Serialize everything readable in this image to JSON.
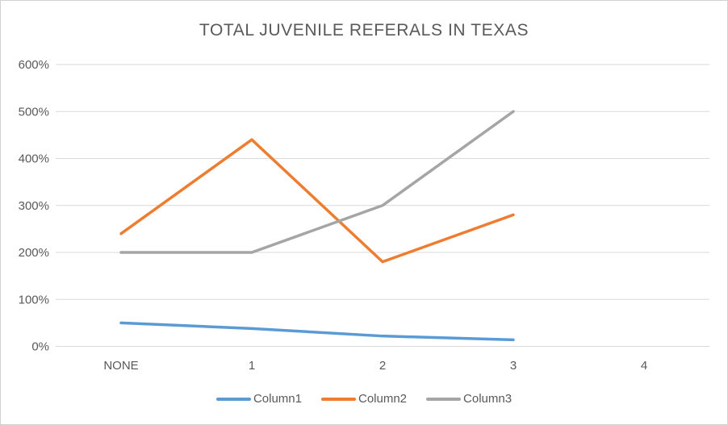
{
  "chart_data": {
    "type": "line",
    "title": "TOTAL JUVENILE REFERALS IN TEXAS",
    "categories": [
      "NONE",
      "1",
      "2",
      "3",
      "4"
    ],
    "series": [
      {
        "name": "Column1",
        "color": "#5B9BD5",
        "values": [
          50,
          38,
          22,
          14,
          null
        ]
      },
      {
        "name": "Column2",
        "color": "#ED7D31",
        "values": [
          240,
          440,
          180,
          280,
          null
        ]
      },
      {
        "name": "Column3",
        "color": "#A5A5A5",
        "values": [
          200,
          200,
          300,
          500,
          null
        ]
      }
    ],
    "y_axis": {
      "min": 0,
      "max": 600,
      "step": 100,
      "unit": "percent",
      "tick_labels": [
        "0%",
        "100%",
        "200%",
        "300%",
        "400%",
        "500%",
        "600%"
      ]
    },
    "x_axis_labels": [
      "NONE",
      "1",
      "2",
      "3",
      "4"
    ],
    "grid": true,
    "legend_position": "bottom",
    "legend_labels": [
      "Column1",
      "Column2",
      "Column3"
    ],
    "colors": {
      "text": "#595959",
      "gridline": "#D9D9D9",
      "border": "#D2D2D2",
      "background": "#FFFFFF"
    }
  }
}
